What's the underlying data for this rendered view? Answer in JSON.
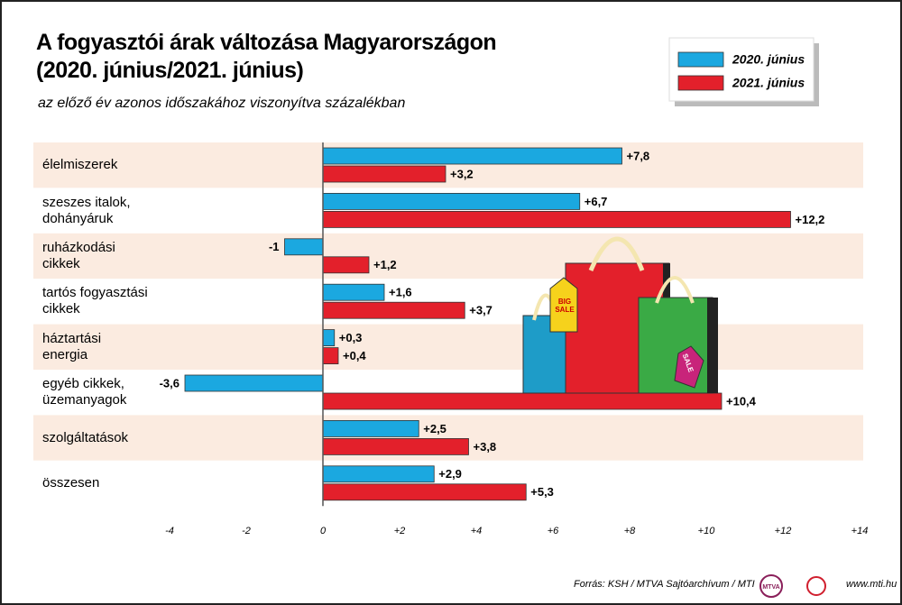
{
  "chart_data": {
    "type": "bar",
    "orientation": "horizontal",
    "title": "A fogyasztói árak változása Magyarországon\n(2020. június/2021. június)",
    "subtitle": "az előző év azonos időszakához viszonyítva százalékban",
    "categories": [
      "élelmiszerek",
      "szeszes italok,\ndohányáruk",
      "ruházkodási\ncikkek",
      "tartós fogyasztási\ncikkek",
      "háztartási\nenergia",
      "egyéb cikkek,\nüzemanyagok",
      "szolgáltatások",
      "összesen"
    ],
    "series": [
      {
        "name": "2020. június",
        "color": "#1ba8e0",
        "values": [
          7.8,
          6.7,
          -1,
          1.6,
          0.3,
          -3.6,
          2.5,
          2.9
        ],
        "value_labels": [
          "+7,8",
          "+6,7",
          "-1",
          "+1,6",
          "+0,3",
          "-3,6",
          "+2,5",
          "+2,9"
        ]
      },
      {
        "name": "2021. június",
        "color": "#e3202b",
        "values": [
          3.2,
          12.2,
          1.2,
          3.7,
          0.4,
          10.4,
          3.8,
          5.3
        ],
        "value_labels": [
          "+3,2",
          "+12,2",
          "+1,2",
          "+3,7",
          "+0,4",
          "+10,4",
          "+3,8",
          "+5,3"
        ]
      }
    ],
    "xlim": [
      -4,
      14
    ],
    "xticks": [
      -4,
      -2,
      0,
      {
        "value": 2,
        "label": "+2"
      },
      {
        "value": 4,
        "label": "+4"
      },
      {
        "value": 6,
        "label": "+6"
      },
      {
        "value": 8,
        "label": "+8"
      },
      {
        "value": 10,
        "label": "+10"
      },
      {
        "value": 12,
        "label": "+12"
      },
      {
        "value": 14,
        "label": "+14"
      }
    ],
    "legend": "top-right"
  },
  "illustration": {
    "tag_big": "BIG\nSALE",
    "tag_sale": "SALE"
  },
  "footer": {
    "source": "Forrás: KSH / MTVA Sajtóarchívum / MTI",
    "logo_text": "MTVA",
    "website": "www.mti.hu"
  }
}
